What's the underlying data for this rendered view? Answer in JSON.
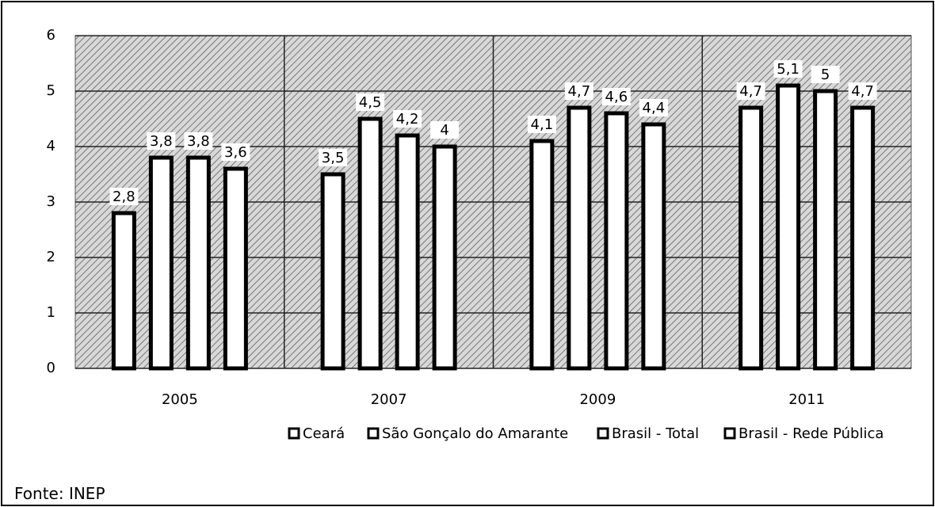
{
  "chart_data": {
    "type": "bar",
    "categories": [
      "2005",
      "2007",
      "2009",
      "2011"
    ],
    "series": [
      {
        "name": "Ceará",
        "color": "#ffffff",
        "values": [
          2.8,
          3.5,
          4.1,
          4.7
        ],
        "value_labels": [
          "2,8",
          "3,5",
          "4,1",
          "4,7"
        ]
      },
      {
        "name": "São Gonçalo do Amarante",
        "color": "#ffffff",
        "values": [
          3.8,
          4.5,
          4.7,
          5.1
        ],
        "value_labels": [
          "3,8",
          "4,5",
          "4,7",
          "5,1"
        ]
      },
      {
        "name": "Brasil - Total",
        "color": "#ffffff",
        "values": [
          3.8,
          4.2,
          4.6,
          5
        ],
        "value_labels": [
          "3,8",
          "4,2",
          "4,6",
          "5"
        ]
      },
      {
        "name": "Brasil - Rede Pública",
        "color": "#ffffff",
        "values": [
          3.6,
          4,
          4.4,
          4.7
        ],
        "value_labels": [
          "3,6",
          "4",
          "4,4",
          "4,7"
        ]
      }
    ],
    "ylim": [
      0,
      6
    ],
    "yticks": [
      0,
      1,
      2,
      3,
      4,
      5,
      6
    ],
    "grid": true,
    "source": "Fonte: INEP"
  }
}
